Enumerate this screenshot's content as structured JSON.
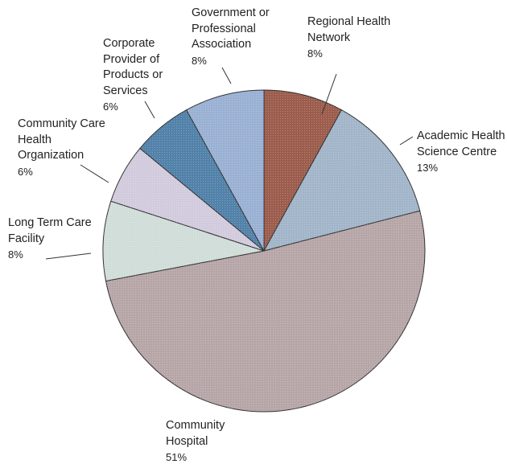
{
  "chart_data": {
    "type": "pie",
    "categories": [
      "Regional Health\nNetwork",
      "Academic Health\nScience Centre",
      "Community\nHospital",
      "Long Term Care\nFacility",
      "Community Care\nHealth\nOrganization",
      "Corporate\nProvider of\nProducts or\nServices",
      "Government or\nProfessional\nAssociation"
    ],
    "values": [
      8,
      13,
      51,
      8,
      6,
      6,
      8
    ],
    "value_labels": [
      "8%",
      "13%",
      "51%",
      "8%",
      "6%",
      "6%",
      "8%"
    ],
    "colors": [
      "#9c5d4d",
      "#a2b5c9",
      "#b7a6a8",
      "#d0ddd8",
      "#d2cbdd",
      "#5282a9",
      "#9ab1d4"
    ]
  }
}
